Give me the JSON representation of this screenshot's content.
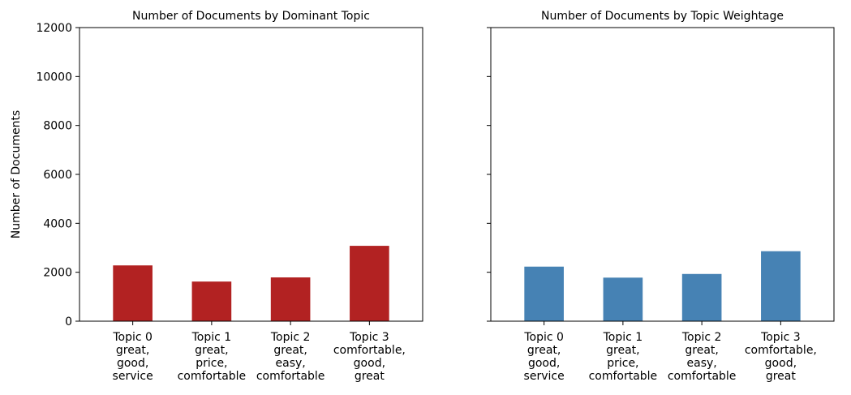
{
  "chart_data": [
    {
      "type": "bar",
      "title": "Number of Documents by Dominant Topic",
      "ylabel": "Number of Documents",
      "xlabel": "",
      "categories": [
        "Topic 0\ngreat,\ngood,\nservice",
        "Topic 1\ngreat,\nprice,\ncomfortable",
        "Topic 2\ngreat,\neasy,\ncomfortable",
        "Topic 3\ncomfortable,\ngood,\ngreat"
      ],
      "values": [
        2280,
        1620,
        1790,
        3080
      ],
      "ylim": [
        0,
        12000
      ],
      "yticks": [
        0,
        2000,
        4000,
        6000,
        8000,
        10000,
        12000
      ],
      "color": "#b22222",
      "grid": false
    },
    {
      "type": "bar",
      "title": "Number of Documents by Topic Weightage",
      "ylabel": "",
      "xlabel": "",
      "categories": [
        "Topic 0\ngreat,\ngood,\nservice",
        "Topic 1\ngreat,\nprice,\ncomfortable",
        "Topic 2\ngreat,\neasy,\ncomfortable",
        "Topic 3\ncomfortable,\ngood,\ngreat"
      ],
      "values": [
        2230,
        1780,
        1930,
        2860
      ],
      "ylim": [
        0,
        12000
      ],
      "yticks": [
        0,
        2000,
        4000,
        6000,
        8000,
        10000,
        12000
      ],
      "show_ytick_labels": false,
      "color": "#4682b4",
      "grid": false
    }
  ]
}
